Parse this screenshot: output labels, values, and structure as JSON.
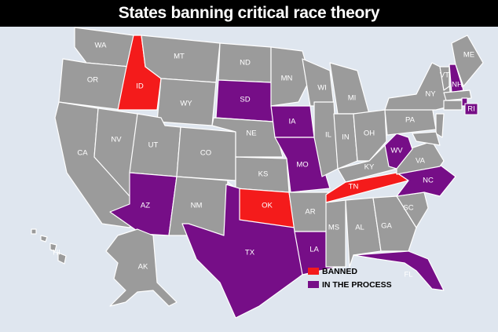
{
  "title": "States banning critical race theory",
  "colors": {
    "banned": "#f41b1b",
    "in_process": "#760e87",
    "none": "#9b9b9b",
    "background": "#dfe6ef"
  },
  "legend": [
    {
      "label": "BANNED",
      "status": "banned"
    },
    {
      "label": "IN THE PROCESS",
      "status": "in_process"
    }
  ],
  "states": [
    {
      "abbr": "WA",
      "status": "none"
    },
    {
      "abbr": "OR",
      "status": "none"
    },
    {
      "abbr": "ID",
      "status": "banned"
    },
    {
      "abbr": "MT",
      "status": "none"
    },
    {
      "abbr": "WY",
      "status": "none"
    },
    {
      "abbr": "CA",
      "status": "none"
    },
    {
      "abbr": "NV",
      "status": "none"
    },
    {
      "abbr": "UT",
      "status": "none"
    },
    {
      "abbr": "AZ",
      "status": "in_process"
    },
    {
      "abbr": "CO",
      "status": "none"
    },
    {
      "abbr": "NM",
      "status": "none"
    },
    {
      "abbr": "ND",
      "status": "none"
    },
    {
      "abbr": "SD",
      "status": "in_process"
    },
    {
      "abbr": "NE",
      "status": "none"
    },
    {
      "abbr": "KS",
      "status": "none"
    },
    {
      "abbr": "OK",
      "status": "banned"
    },
    {
      "abbr": "TX",
      "status": "in_process"
    },
    {
      "abbr": "MN",
      "status": "none"
    },
    {
      "abbr": "IA",
      "status": "in_process"
    },
    {
      "abbr": "MO",
      "status": "in_process"
    },
    {
      "abbr": "AR",
      "status": "none"
    },
    {
      "abbr": "LA",
      "status": "in_process"
    },
    {
      "abbr": "WI",
      "status": "none"
    },
    {
      "abbr": "IL",
      "status": "none"
    },
    {
      "abbr": "MI",
      "status": "none"
    },
    {
      "abbr": "IN",
      "status": "none"
    },
    {
      "abbr": "OH",
      "status": "none"
    },
    {
      "abbr": "KY",
      "status": "none"
    },
    {
      "abbr": "TN",
      "status": "banned"
    },
    {
      "abbr": "MS",
      "status": "none"
    },
    {
      "abbr": "AL",
      "status": "none"
    },
    {
      "abbr": "GA",
      "status": "none"
    },
    {
      "abbr": "FL",
      "status": "in_process"
    },
    {
      "abbr": "SC",
      "status": "none"
    },
    {
      "abbr": "NC",
      "status": "in_process"
    },
    {
      "abbr": "VA",
      "status": "none"
    },
    {
      "abbr": "WV",
      "status": "in_process"
    },
    {
      "abbr": "PA",
      "status": "none"
    },
    {
      "abbr": "NY",
      "status": "none"
    },
    {
      "abbr": "VT",
      "status": "none"
    },
    {
      "abbr": "NH",
      "status": "in_process"
    },
    {
      "abbr": "ME",
      "status": "none"
    },
    {
      "abbr": "MA",
      "status": "none"
    },
    {
      "abbr": "CT",
      "status": "none"
    },
    {
      "abbr": "RI",
      "status": "in_process"
    },
    {
      "abbr": "NJ",
      "status": "none"
    },
    {
      "abbr": "MD",
      "status": "none"
    },
    {
      "abbr": "AK",
      "status": "none"
    },
    {
      "abbr": "HI",
      "status": "none"
    }
  ]
}
